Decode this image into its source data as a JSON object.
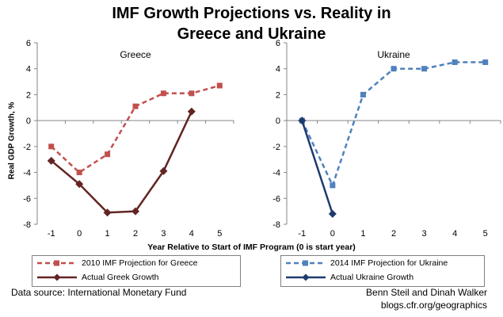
{
  "title_line1": "IMF Growth Projections vs. Reality in",
  "title_line2": "Greece and Ukraine",
  "ylabel": "Real GDP Growth, %",
  "xlabel": "Year Relative to Start of IMF Program (0 is start year)",
  "colors": {
    "greece_projection": "#c0504d",
    "greece_actual": "#632523",
    "ukraine_projection": "#4f81bd",
    "ukraine_actual": "#1f3b6e"
  },
  "chart_data": [
    {
      "type": "line",
      "title": "Greece",
      "x": [
        -1,
        0,
        1,
        2,
        3,
        4,
        5
      ],
      "ylim": [
        -8,
        6
      ],
      "yticks": [
        -8,
        -6,
        -4,
        -2,
        0,
        2,
        4,
        6
      ],
      "series": [
        {
          "name": "2010 IMF Projection for Greece",
          "x": [
            -1,
            0,
            1,
            2,
            3,
            4,
            5
          ],
          "values": [
            -2.0,
            -4.0,
            -2.6,
            1.1,
            2.1,
            2.1,
            2.7
          ],
          "style": "dashed",
          "marker": "square"
        },
        {
          "name": "Actual Greek Growth",
          "x": [
            -1,
            0,
            1,
            2,
            3,
            4
          ],
          "values": [
            -3.1,
            -4.9,
            -7.1,
            -7.0,
            -3.9,
            0.7
          ],
          "style": "solid",
          "marker": "diamond"
        }
      ]
    },
    {
      "type": "line",
      "title": "Ukraine",
      "x": [
        -1,
        0,
        1,
        2,
        3,
        4,
        5
      ],
      "ylim": [
        -8,
        6
      ],
      "yticks": [
        -8,
        -6,
        -4,
        -2,
        0,
        2,
        4,
        6
      ],
      "series": [
        {
          "name": "2014 IMF Projection for Ukraine",
          "x": [
            -1,
            0,
            1,
            2,
            3,
            4,
            5
          ],
          "values": [
            0.0,
            -5.0,
            2.0,
            4.0,
            4.0,
            4.5,
            4.5
          ],
          "style": "dashed",
          "marker": "square"
        },
        {
          "name": "Actual Ukraine Growth",
          "x": [
            -1,
            0
          ],
          "values": [
            0.0,
            -7.2
          ],
          "style": "solid",
          "marker": "diamond"
        }
      ]
    }
  ],
  "legend": {
    "greece": [
      "2010 IMF Projection for Greece",
      "Actual Greek Growth"
    ],
    "ukraine": [
      "2014 IMF Projection for Ukraine",
      "Actual Ukraine Growth"
    ]
  },
  "footer": {
    "source": "Data source: International Monetary Fund",
    "authors": "Benn Steil and Dinah Walker",
    "site": "blogs.cfr.org/geographics"
  }
}
